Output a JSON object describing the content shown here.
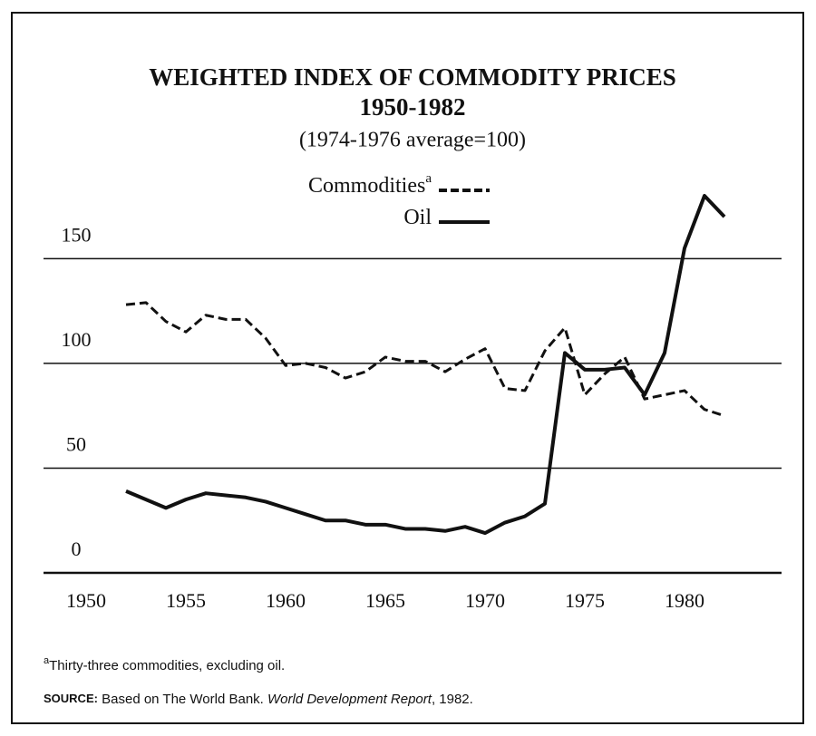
{
  "chart_data": {
    "type": "line",
    "title": "WEIGHTED INDEX OF COMMODITY PRICES",
    "subtitle": "1950-1982",
    "note": "(1974-1976 average=100)",
    "footnote_marker": "a",
    "footnote": "Thirty-three commodities, excluding oil.",
    "source_label": "SOURCE:",
    "source_text": "Based on The World Bank.",
    "source_italic": "World Development Report",
    "source_end": ", 1982.",
    "x": [
      1952,
      1953,
      1954,
      1955,
      1956,
      1957,
      1958,
      1959,
      1960,
      1961,
      1962,
      1963,
      1964,
      1965,
      1966,
      1967,
      1968,
      1969,
      1970,
      1971,
      1972,
      1973,
      1974,
      1975,
      1976,
      1977,
      1978,
      1979,
      1980,
      1981,
      1982
    ],
    "series": [
      {
        "name": "Commodities",
        "color": "#111111",
        "dashed": true,
        "values": [
          128,
          129,
          120,
          115,
          123,
          121,
          121,
          112,
          99,
          100,
          98,
          93,
          96,
          103,
          101,
          101,
          96,
          102,
          107,
          88,
          87,
          106,
          117,
          85,
          95,
          103,
          83,
          85,
          87,
          78,
          75
        ]
      },
      {
        "name": "Oil",
        "color": "#111111",
        "dashed": false,
        "values": [
          39,
          35,
          31,
          35,
          38,
          37,
          36,
          34,
          31,
          28,
          25,
          25,
          23,
          23,
          21,
          21,
          20,
          22,
          19,
          24,
          27,
          33,
          105,
          97,
          97,
          98,
          85,
          105,
          155,
          180,
          170
        ]
      }
    ],
    "xlim": [
      1948,
      1985
    ],
    "xticks": [
      1950,
      1955,
      1960,
      1965,
      1970,
      1975,
      1980
    ],
    "ylim": [
      0,
      180
    ],
    "yticks": [
      0,
      50,
      100,
      150
    ],
    "grid": true
  }
}
